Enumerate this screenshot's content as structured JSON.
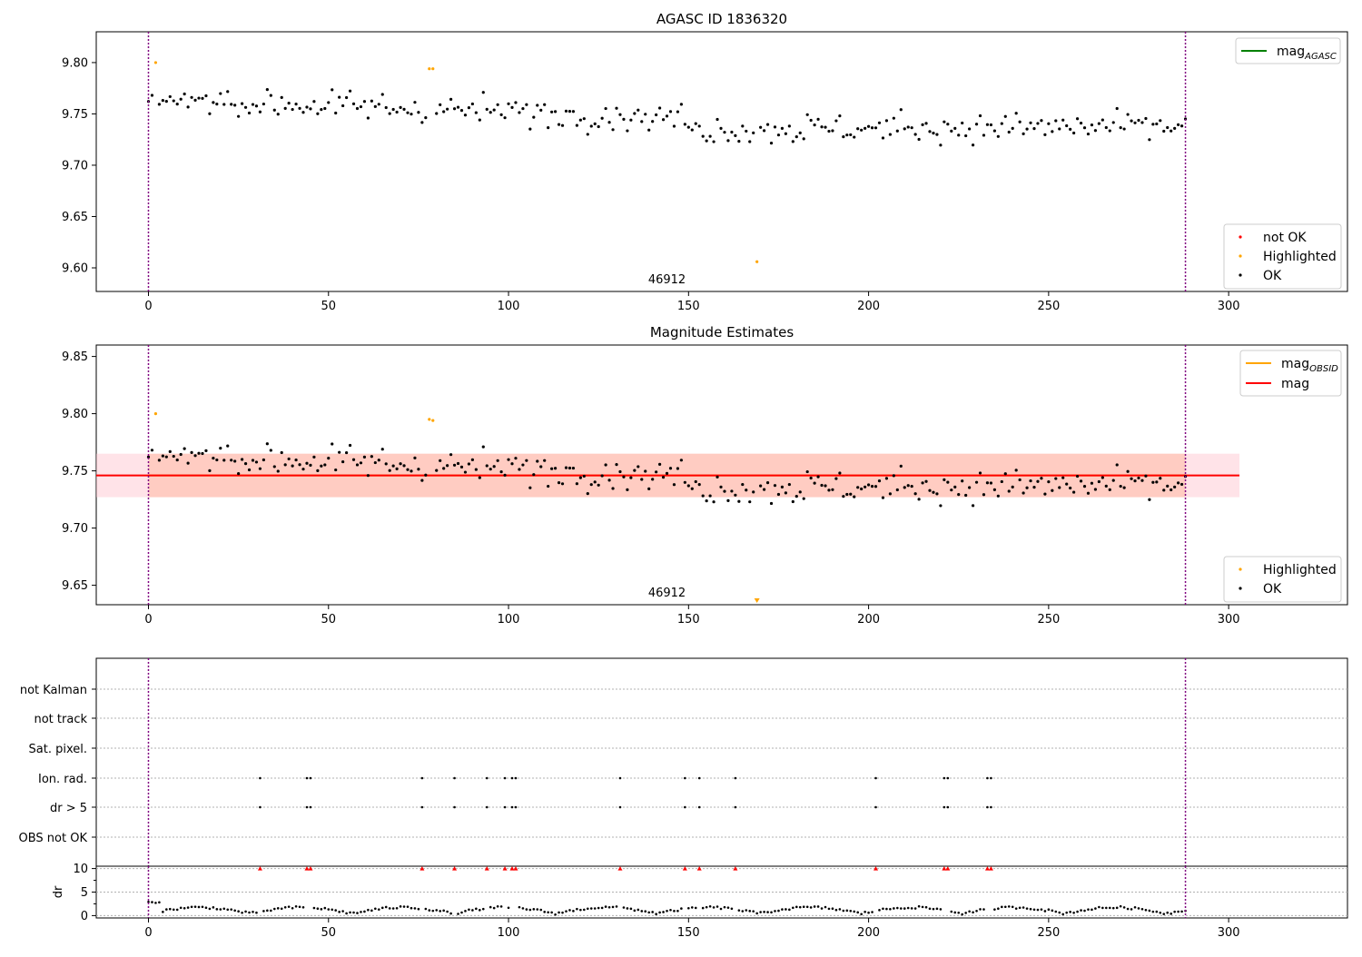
{
  "chart_data": [
    {
      "id": "agasc",
      "type": "scatter",
      "title": "AGASC ID 1836320",
      "xlim": [
        -14.5,
        333
      ],
      "ylim": [
        9.577,
        9.83
      ],
      "x_ticks": [
        0,
        50,
        100,
        150,
        200,
        250,
        300
      ],
      "y_ticks": [
        9.6,
        9.65,
        9.7,
        9.75,
        9.8
      ],
      "y_tick_labels": [
        "9.60",
        "9.65",
        "9.70",
        "9.75",
        "9.80"
      ],
      "obsid_boundaries": [
        0,
        288
      ],
      "obsid_label": {
        "text": "46912",
        "x": 144
      },
      "legend_lines": [
        {
          "label": "mag",
          "sub": "AGASC",
          "color": "#008000"
        }
      ],
      "legend_points": [
        {
          "label": "not OK",
          "color": "#ff0000"
        },
        {
          "label": "Highlighted",
          "color": "#ffa500"
        },
        {
          "label": "OK",
          "color": "#000000"
        }
      ],
      "highlighted": [
        [
          2,
          9.8
        ],
        [
          78,
          9.794
        ],
        [
          79,
          9.794
        ],
        [
          169,
          9.606
        ]
      ]
    },
    {
      "id": "estimates",
      "type": "scatter",
      "title": "Magnitude Estimates",
      "xlim": [
        -14.5,
        333
      ],
      "ylim": [
        9.633,
        9.86
      ],
      "x_ticks": [
        0,
        50,
        100,
        150,
        200,
        250,
        300
      ],
      "y_ticks": [
        9.65,
        9.7,
        9.75,
        9.8,
        9.85
      ],
      "y_tick_labels": [
        "9.65",
        "9.70",
        "9.75",
        "9.80",
        "9.85"
      ],
      "obsid_boundaries": [
        0,
        288
      ],
      "obsid_label": {
        "text": "46912",
        "x": 144
      },
      "mag": 9.746,
      "mag_band": [
        9.727,
        9.765
      ],
      "mag_obsid": 9.746,
      "mag_obsid_band": [
        9.727,
        9.765
      ],
      "band_x_end": 303,
      "legend_lines": [
        {
          "label": "mag",
          "sub": "OBSID",
          "color": "#ffa500"
        },
        {
          "label": "mag",
          "sub": "",
          "color": "#ff0000"
        }
      ],
      "legend_points": [
        {
          "label": "Highlighted",
          "color": "#ffa500"
        },
        {
          "label": "OK",
          "color": "#000000"
        }
      ],
      "highlighted": [
        [
          2,
          9.8
        ],
        [
          78,
          9.795
        ],
        [
          79,
          9.794
        ]
      ],
      "off_scale": [
        [
          169,
          "down"
        ]
      ]
    },
    {
      "id": "flags",
      "type": "scatter",
      "xlim": [
        -14.5,
        333
      ],
      "categories": [
        "not Kalman",
        "not track",
        "Sat. pixel.",
        "Ion. rad.",
        "dr > 5",
        "OBS not OK"
      ],
      "obsid_boundaries": [
        0,
        288
      ],
      "flagged_x": [
        31,
        44,
        45,
        76,
        85,
        94,
        99,
        101,
        102,
        131,
        149,
        153,
        163,
        202,
        221,
        222,
        233,
        234
      ],
      "flag_rows": [
        "Ion. rad.",
        "dr > 5"
      ]
    },
    {
      "id": "dr",
      "type": "scatter",
      "ylabel": "dr",
      "xlim": [
        -14.5,
        333
      ],
      "ylim": [
        -0.5,
        10.5
      ],
      "x_ticks": [
        0,
        50,
        100,
        150,
        200,
        250,
        300
      ],
      "y_ticks": [
        0,
        5,
        10
      ],
      "y_tick_labels": [
        "0",
        "5",
        "10"
      ],
      "obsid_boundaries": [
        0,
        288
      ],
      "clipped_value": 10,
      "flagged_x": [
        31,
        44,
        45,
        76,
        85,
        94,
        99,
        101,
        102,
        131,
        149,
        153,
        163,
        202,
        221,
        222,
        233,
        234
      ]
    }
  ],
  "colors": {
    "boundary": "#800080",
    "ok": "#000000",
    "highlight": "#ffa500",
    "notok": "#ff0000",
    "mag_line": "#ff0000",
    "band_outer": "#ffc0cb",
    "band_inner": "#ffa07a"
  }
}
